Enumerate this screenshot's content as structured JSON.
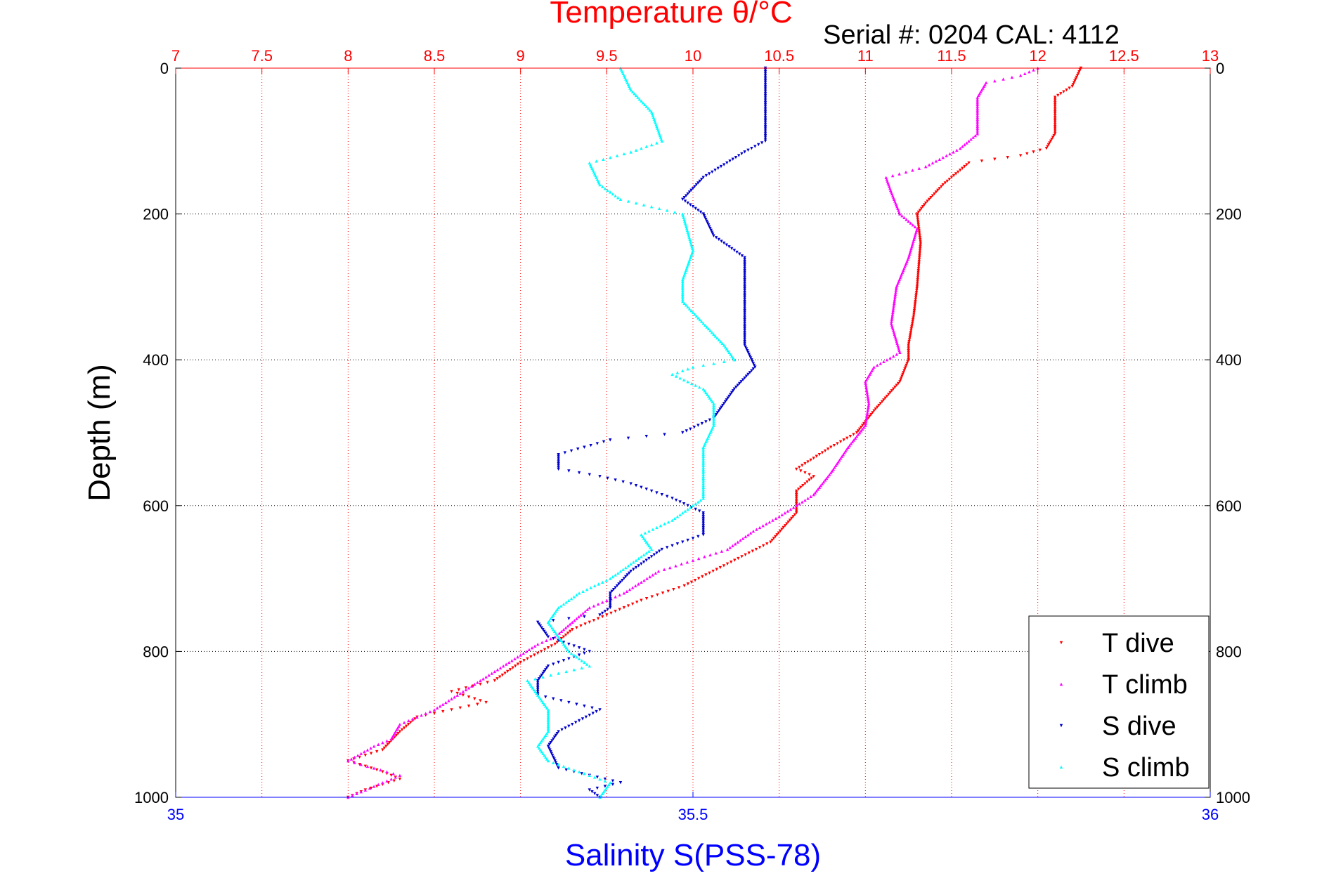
{
  "chart_data": {
    "type": "scatter",
    "title": "Temperature θ/°C",
    "subtitle": "Serial #: 0204  CAL: 4112",
    "ylabel": "Depth (m)",
    "xlabel": "Salinity S(PSS-78)",
    "y_axis": {
      "lim": [
        0,
        1000
      ],
      "reversed": true,
      "ticks": [
        0,
        200,
        400,
        600,
        800,
        1000
      ],
      "tick_labels": [
        "0",
        "200",
        "400",
        "600",
        "800",
        "1000"
      ]
    },
    "x_top_axis": {
      "label": "Temperature θ/°C",
      "lim": [
        7,
        13
      ],
      "ticks": [
        7,
        7.5,
        8,
        8.5,
        9,
        9.5,
        10,
        10.5,
        11,
        11.5,
        12,
        12.5,
        13
      ],
      "tick_labels": [
        "7",
        "7.5",
        "8",
        "8.5",
        "9",
        "9.5",
        "10",
        "10.5",
        "11",
        "11.5",
        "12",
        "12.5",
        "13"
      ],
      "color": "#ff0000"
    },
    "x_bottom_axis": {
      "label": "Salinity S(PSS-78)",
      "lim": [
        35,
        36
      ],
      "ticks": [
        35,
        35.5,
        36
      ],
      "tick_labels": [
        "35",
        "35.5",
        "36"
      ],
      "color": "#0000ff"
    },
    "grid": true,
    "legend_position": "bottom-right",
    "series": [
      {
        "name": "T dive",
        "axis": "top",
        "color": "#ff0000",
        "marker": "triangle-down",
        "points": [
          [
            12.25,
            0
          ],
          [
            12.2,
            25
          ],
          [
            12.1,
            40
          ],
          [
            12.1,
            90
          ],
          [
            12.05,
            110
          ],
          [
            11.9,
            120
          ],
          [
            11.6,
            130
          ],
          [
            11.45,
            160
          ],
          [
            11.35,
            185
          ],
          [
            11.3,
            200
          ],
          [
            11.32,
            240
          ],
          [
            11.3,
            300
          ],
          [
            11.28,
            340
          ],
          [
            11.25,
            380
          ],
          [
            11.25,
            400
          ],
          [
            11.2,
            430
          ],
          [
            11.05,
            470
          ],
          [
            10.95,
            500
          ],
          [
            10.8,
            520
          ],
          [
            10.6,
            550
          ],
          [
            10.7,
            560
          ],
          [
            10.6,
            580
          ],
          [
            10.6,
            610
          ],
          [
            10.45,
            650
          ],
          [
            10.2,
            680
          ],
          [
            9.95,
            710
          ],
          [
            9.7,
            730
          ],
          [
            9.5,
            750
          ],
          [
            9.3,
            770
          ],
          [
            9.2,
            790
          ],
          [
            9.0,
            815
          ],
          [
            8.85,
            840
          ],
          [
            8.6,
            855
          ],
          [
            8.8,
            870
          ],
          [
            8.4,
            890
          ],
          [
            8.3,
            910
          ],
          [
            8.2,
            935
          ],
          [
            8.0,
            950
          ],
          [
            8.2,
            965
          ],
          [
            8.3,
            975
          ],
          [
            8.1,
            990
          ],
          [
            8.0,
            1000
          ]
        ]
      },
      {
        "name": "T climb",
        "axis": "top",
        "color": "#ff00ff",
        "marker": "triangle-up",
        "points": [
          [
            12.0,
            0
          ],
          [
            11.9,
            10
          ],
          [
            11.7,
            20
          ],
          [
            11.65,
            40
          ],
          [
            11.65,
            90
          ],
          [
            11.55,
            110
          ],
          [
            11.35,
            135
          ],
          [
            11.12,
            150
          ],
          [
            11.15,
            170
          ],
          [
            11.2,
            200
          ],
          [
            11.3,
            220
          ],
          [
            11.25,
            260
          ],
          [
            11.18,
            300
          ],
          [
            11.15,
            350
          ],
          [
            11.2,
            390
          ],
          [
            11.05,
            410
          ],
          [
            11.0,
            430
          ],
          [
            11.02,
            460
          ],
          [
            11.0,
            490
          ],
          [
            10.9,
            520
          ],
          [
            10.8,
            555
          ],
          [
            10.7,
            585
          ],
          [
            10.5,
            615
          ],
          [
            10.35,
            635
          ],
          [
            10.2,
            660
          ],
          [
            9.8,
            690
          ],
          [
            9.6,
            720
          ],
          [
            9.4,
            740
          ],
          [
            9.3,
            760
          ],
          [
            9.2,
            780
          ],
          [
            9.1,
            790
          ],
          [
            8.9,
            820
          ],
          [
            8.7,
            850
          ],
          [
            8.5,
            880
          ],
          [
            8.3,
            900
          ],
          [
            8.25,
            920
          ],
          [
            8.15,
            930
          ],
          [
            8.0,
            950
          ],
          [
            8.3,
            970
          ],
          [
            8.1,
            990
          ],
          [
            8.0,
            1000
          ]
        ]
      },
      {
        "name": "S dive",
        "axis": "bottom",
        "color": "#0000cc",
        "marker": "triangle-down",
        "points": [
          [
            35.57,
            0
          ],
          [
            35.57,
            50
          ],
          [
            35.57,
            100
          ],
          [
            35.55,
            115
          ],
          [
            35.51,
            150
          ],
          [
            35.49,
            180
          ],
          [
            35.51,
            200
          ],
          [
            35.52,
            230
          ],
          [
            35.55,
            260
          ],
          [
            35.55,
            300
          ],
          [
            35.55,
            350
          ],
          [
            35.55,
            380
          ],
          [
            35.56,
            410
          ],
          [
            35.54,
            440
          ],
          [
            35.53,
            460
          ],
          [
            35.52,
            480
          ],
          [
            35.49,
            500
          ],
          [
            35.42,
            510
          ],
          [
            35.37,
            530
          ],
          [
            35.37,
            550
          ],
          [
            35.41,
            560
          ],
          [
            35.44,
            570
          ],
          [
            35.48,
            590
          ],
          [
            35.51,
            610
          ],
          [
            35.51,
            640
          ],
          [
            35.47,
            660
          ],
          [
            35.44,
            690
          ],
          [
            35.42,
            720
          ],
          [
            35.42,
            740
          ],
          [
            35.41,
            750
          ],
          [
            35.35,
            760
          ],
          [
            35.36,
            780
          ],
          [
            35.4,
            800
          ],
          [
            35.36,
            820
          ],
          [
            35.35,
            840
          ],
          [
            35.35,
            860
          ],
          [
            35.41,
            880
          ],
          [
            35.37,
            910
          ],
          [
            35.36,
            930
          ],
          [
            35.37,
            960
          ],
          [
            35.43,
            980
          ],
          [
            35.4,
            990
          ],
          [
            35.41,
            1000
          ]
        ]
      },
      {
        "name": "S climb",
        "axis": "bottom",
        "color": "#00ffff",
        "marker": "triangle-up",
        "points": [
          [
            35.43,
            0
          ],
          [
            35.44,
            30
          ],
          [
            35.46,
            60
          ],
          [
            35.47,
            100
          ],
          [
            35.44,
            115
          ],
          [
            35.4,
            130
          ],
          [
            35.41,
            160
          ],
          [
            35.43,
            180
          ],
          [
            35.49,
            200
          ],
          [
            35.5,
            250
          ],
          [
            35.49,
            290
          ],
          [
            35.49,
            320
          ],
          [
            35.51,
            350
          ],
          [
            35.53,
            380
          ],
          [
            35.54,
            400
          ],
          [
            35.5,
            410
          ],
          [
            35.48,
            420
          ],
          [
            35.51,
            440
          ],
          [
            35.52,
            460
          ],
          [
            35.52,
            490
          ],
          [
            35.51,
            520
          ],
          [
            35.51,
            560
          ],
          [
            35.51,
            590
          ],
          [
            35.48,
            620
          ],
          [
            35.45,
            640
          ],
          [
            35.46,
            660
          ],
          [
            35.44,
            680
          ],
          [
            35.42,
            700
          ],
          [
            35.39,
            720
          ],
          [
            35.37,
            740
          ],
          [
            35.36,
            760
          ],
          [
            35.37,
            780
          ],
          [
            35.38,
            800
          ],
          [
            35.4,
            820
          ],
          [
            35.34,
            840
          ],
          [
            35.35,
            860
          ],
          [
            35.36,
            880
          ],
          [
            35.36,
            910
          ],
          [
            35.35,
            930
          ],
          [
            35.36,
            950
          ],
          [
            35.4,
            970
          ],
          [
            35.42,
            980
          ],
          [
            35.41,
            1000
          ]
        ]
      }
    ]
  }
}
